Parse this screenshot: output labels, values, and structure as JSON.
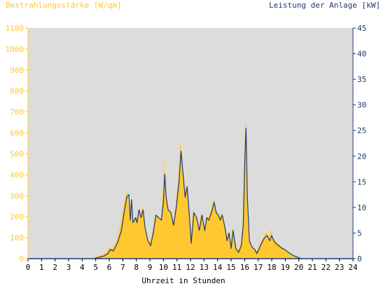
{
  "colors": {
    "irradiance": "#ffc830",
    "power": "#1f3a78",
    "plot_background": "#dcdcdc",
    "axis_text": "#000000"
  },
  "chart_data": {
    "type": "area",
    "left_axis_title": "Bestrahlungsstärke [W/qm]",
    "right_axis_title": "Leistung der Anlage [kW]",
    "xlabel": "Uhrzeit in Stunden",
    "xlim": [
      0,
      24
    ],
    "xticks": [
      0,
      1,
      2,
      3,
      4,
      5,
      6,
      7,
      8,
      9,
      10,
      11,
      12,
      13,
      14,
      15,
      16,
      17,
      18,
      19,
      20,
      21,
      22,
      23,
      24
    ],
    "ylim_left": [
      0,
      1100
    ],
    "yticks_left": [
      0,
      100,
      200,
      300,
      400,
      500,
      600,
      700,
      800,
      900,
      1000,
      1100
    ],
    "ylim_right": [
      0,
      45
    ],
    "yticks_right": [
      0,
      5,
      10,
      15,
      20,
      25,
      30,
      35,
      40,
      45
    ],
    "grid": false,
    "series": [
      {
        "axis": "left",
        "style": "area",
        "points": [
          [
            4.7,
            0
          ],
          [
            5.0,
            10
          ],
          [
            5.5,
            20
          ],
          [
            5.8,
            30
          ],
          [
            6.0,
            55
          ],
          [
            6.2,
            45
          ],
          [
            6.5,
            80
          ],
          [
            6.8,
            150
          ],
          [
            7.0,
            230
          ],
          [
            7.2,
            300
          ],
          [
            7.35,
            320
          ],
          [
            7.5,
            190
          ],
          [
            7.6,
            290
          ],
          [
            7.7,
            170
          ],
          [
            7.9,
            200
          ],
          [
            8.0,
            180
          ],
          [
            8.15,
            230
          ],
          [
            8.3,
            200
          ],
          [
            8.45,
            255
          ],
          [
            8.6,
            160
          ],
          [
            8.8,
            100
          ],
          [
            9.0,
            80
          ],
          [
            9.2,
            130
          ],
          [
            9.4,
            210
          ],
          [
            9.6,
            200
          ],
          [
            9.8,
            180
          ],
          [
            9.95,
            300
          ],
          [
            10.05,
            480
          ],
          [
            10.15,
            320
          ],
          [
            10.3,
            240
          ],
          [
            10.5,
            230
          ],
          [
            10.7,
            170
          ],
          [
            10.9,
            250
          ],
          [
            11.1,
            380
          ],
          [
            11.25,
            570
          ],
          [
            11.4,
            420
          ],
          [
            11.55,
            300
          ],
          [
            11.7,
            370
          ],
          [
            11.85,
            230
          ],
          [
            12.0,
            90
          ],
          [
            12.2,
            230
          ],
          [
            12.4,
            200
          ],
          [
            12.6,
            150
          ],
          [
            12.8,
            220
          ],
          [
            13.0,
            140
          ],
          [
            13.15,
            200
          ],
          [
            13.3,
            200
          ],
          [
            13.5,
            230
          ],
          [
            13.7,
            290
          ],
          [
            13.85,
            230
          ],
          [
            14.0,
            220
          ],
          [
            14.15,
            200
          ],
          [
            14.3,
            220
          ],
          [
            14.5,
            160
          ],
          [
            14.65,
            100
          ],
          [
            14.8,
            130
          ],
          [
            14.95,
            60
          ],
          [
            15.1,
            150
          ],
          [
            15.3,
            60
          ],
          [
            15.5,
            40
          ],
          [
            15.7,
            70
          ],
          [
            15.85,
            170
          ],
          [
            15.95,
            460
          ],
          [
            16.05,
            680
          ],
          [
            16.15,
            300
          ],
          [
            16.3,
            90
          ],
          [
            16.5,
            60
          ],
          [
            16.7,
            50
          ],
          [
            16.85,
            30
          ],
          [
            17.0,
            50
          ],
          [
            17.2,
            80
          ],
          [
            17.4,
            100
          ],
          [
            17.6,
            130
          ],
          [
            17.8,
            100
          ],
          [
            17.95,
            140
          ],
          [
            18.1,
            100
          ],
          [
            18.3,
            80
          ],
          [
            18.5,
            70
          ],
          [
            18.7,
            60
          ],
          [
            18.9,
            50
          ],
          [
            19.1,
            40
          ],
          [
            19.3,
            30
          ],
          [
            19.5,
            20
          ],
          [
            19.8,
            10
          ],
          [
            20.0,
            0
          ]
        ]
      },
      {
        "axis": "right",
        "style": "line",
        "points": [
          [
            4.9,
            0
          ],
          [
            5.2,
            0.2
          ],
          [
            5.6,
            0.5
          ],
          [
            5.9,
            1.0
          ],
          [
            6.1,
            1.8
          ],
          [
            6.3,
            1.5
          ],
          [
            6.6,
            3
          ],
          [
            6.9,
            5.5
          ],
          [
            7.1,
            9
          ],
          [
            7.3,
            12
          ],
          [
            7.45,
            12.5
          ],
          [
            7.55,
            7.5
          ],
          [
            7.65,
            11.5
          ],
          [
            7.75,
            7
          ],
          [
            7.95,
            8
          ],
          [
            8.05,
            7
          ],
          [
            8.2,
            9.5
          ],
          [
            8.35,
            8
          ],
          [
            8.5,
            9.5
          ],
          [
            8.65,
            6
          ],
          [
            8.85,
            3.5
          ],
          [
            9.05,
            2.5
          ],
          [
            9.25,
            5
          ],
          [
            9.45,
            8.5
          ],
          [
            9.65,
            8
          ],
          [
            9.85,
            7.5
          ],
          [
            10.0,
            11
          ],
          [
            10.1,
            16.5
          ],
          [
            10.2,
            12
          ],
          [
            10.35,
            9.5
          ],
          [
            10.55,
            9
          ],
          [
            10.75,
            6.5
          ],
          [
            10.95,
            10
          ],
          [
            11.15,
            15
          ],
          [
            11.3,
            21
          ],
          [
            11.45,
            16.5
          ],
          [
            11.6,
            12
          ],
          [
            11.75,
            14
          ],
          [
            11.9,
            9
          ],
          [
            12.05,
            3
          ],
          [
            12.25,
            9
          ],
          [
            12.45,
            8
          ],
          [
            12.65,
            5.5
          ],
          [
            12.85,
            8.5
          ],
          [
            13.05,
            5.5
          ],
          [
            13.2,
            8
          ],
          [
            13.35,
            7.5
          ],
          [
            13.55,
            9
          ],
          [
            13.75,
            11
          ],
          [
            13.9,
            9
          ],
          [
            14.05,
            8.5
          ],
          [
            14.2,
            7.5
          ],
          [
            14.35,
            8.5
          ],
          [
            14.55,
            6
          ],
          [
            14.7,
            3.5
          ],
          [
            14.85,
            5
          ],
          [
            15.0,
            2
          ],
          [
            15.15,
            5.5
          ],
          [
            15.35,
            2
          ],
          [
            15.55,
            1.2
          ],
          [
            15.75,
            2.5
          ],
          [
            15.9,
            6.5
          ],
          [
            16.0,
            18
          ],
          [
            16.1,
            25.5
          ],
          [
            16.2,
            12
          ],
          [
            16.35,
            3.5
          ],
          [
            16.55,
            2.2
          ],
          [
            16.75,
            1.8
          ],
          [
            16.9,
            1.0
          ],
          [
            17.05,
            1.8
          ],
          [
            17.25,
            3
          ],
          [
            17.45,
            4
          ],
          [
            17.65,
            4.5
          ],
          [
            17.85,
            3.5
          ],
          [
            18.0,
            4.5
          ],
          [
            18.15,
            3.5
          ],
          [
            18.35,
            2.8
          ],
          [
            18.55,
            2.5
          ],
          [
            18.75,
            2
          ],
          [
            18.95,
            1.8
          ],
          [
            19.15,
            1.4
          ],
          [
            19.35,
            1
          ],
          [
            19.6,
            0.6
          ],
          [
            19.9,
            0.3
          ],
          [
            20.2,
            0
          ]
        ]
      }
    ]
  }
}
